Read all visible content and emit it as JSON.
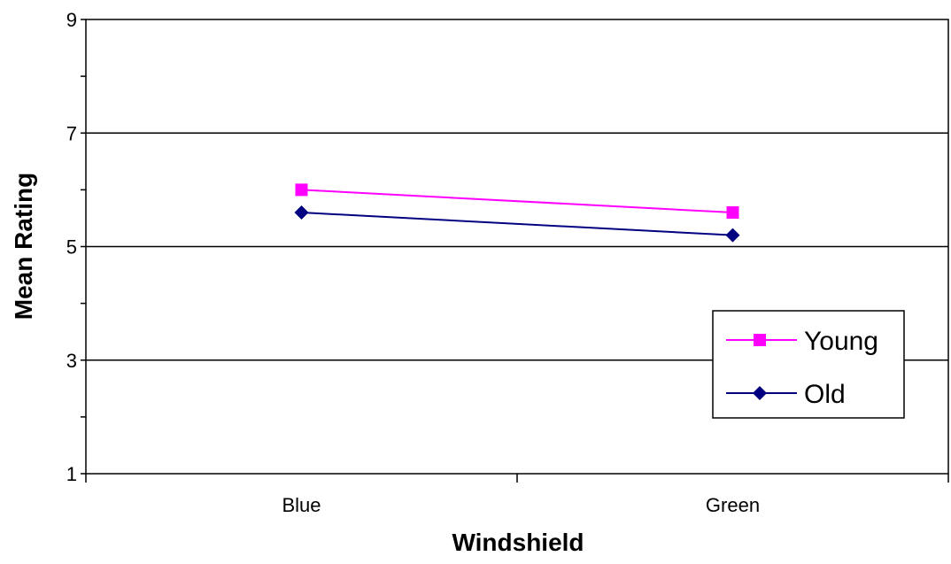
{
  "chart_data": {
    "type": "line",
    "title": "",
    "xlabel": "Windshield",
    "ylabel": "Mean Rating",
    "categories": [
      "Blue",
      "Green"
    ],
    "ylim": [
      1,
      9
    ],
    "yticks": [
      "1",
      "3",
      "5",
      "7",
      "9"
    ],
    "grid": "horizontal major lines at 3, 5, 7, 9",
    "legend_position": "lower-right",
    "series": [
      {
        "name": "Young",
        "values": [
          6.0,
          5.6
        ],
        "color": "#ff00ff",
        "marker": "square"
      },
      {
        "name": "Old",
        "values": [
          5.6,
          5.2
        ],
        "color": "#000080",
        "marker": "diamond"
      }
    ]
  }
}
